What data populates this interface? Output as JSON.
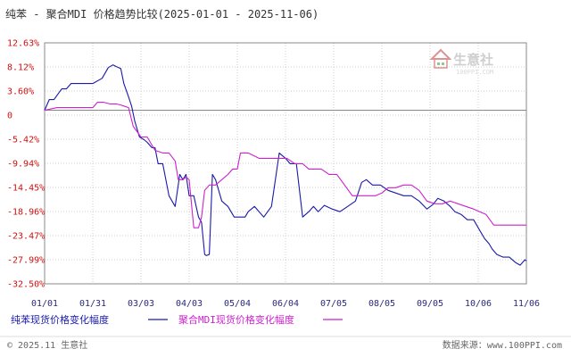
{
  "header": {
    "title": "纯苯 - 聚合MDI 价格趋势比较(2025-01-01 - 2025-11-06)"
  },
  "watermark": {
    "logo_text": "生意社",
    "logo_url": "100PPI.COM"
  },
  "footer": {
    "copyright": "© 2025.11 生意社",
    "site": "数据来源：www.100PPI.com"
  },
  "colors": {
    "series_1": "#1a1aa8",
    "series_2": "#cc22cc",
    "axis_label": "#d01010",
    "tick_label": "#2a2a7a",
    "grid": "#cfcfcf",
    "background": "#ffffff"
  },
  "chart_data": {
    "type": "line",
    "title": "纯苯 - 聚合MDI 价格趋势比较(2025-01-01 - 2025-11-06)",
    "x_ticks": [
      "01/01",
      "01/31",
      "03/03",
      "04/03",
      "05/04",
      "06/04",
      "07/05",
      "08/05",
      "09/05",
      "10/06",
      "11/06"
    ],
    "y_ticks": [
      "12.63%",
      "8.12%",
      "3.60%",
      "0",
      "-5.42%",
      "-9.94%",
      "-14.45%",
      "-18.96%",
      "-23.47%",
      "-27.99%",
      "-32.50%"
    ],
    "ylim": [
      -32.5,
      12.63
    ],
    "grid": true,
    "legend_position": "bottom",
    "series": [
      {
        "name": "纯苯现货价格变化幅度",
        "color": "#1a1aa8",
        "x": [
          0,
          3,
          6,
          11,
          14,
          17,
          21,
          26,
          31,
          37,
          41,
          44,
          46,
          49,
          51,
          54,
          56,
          58,
          61,
          64,
          66,
          69,
          71,
          73,
          76,
          80,
          84,
          87,
          89,
          91,
          93,
          96,
          99,
          101,
          103,
          104,
          106,
          108,
          110,
          114,
          118,
          122,
          126,
          129,
          131,
          135,
          138,
          141,
          146,
          151,
          155,
          158,
          162,
          166,
          170,
          173,
          176,
          180,
          185,
          190,
          195,
          200,
          204,
          207,
          211,
          216,
          221,
          226,
          231,
          236,
          241,
          246,
          250,
          253,
          257,
          261,
          264,
          268,
          272,
          276,
          279,
          283,
          286,
          288,
          291,
          295,
          299,
          303,
          306,
          309,
          310
        ],
        "values": [
          0,
          2,
          2,
          4,
          4,
          5,
          5,
          5,
          5,
          6,
          8,
          8.5,
          8.2,
          7.8,
          5,
          2.5,
          0.8,
          -2,
          -5,
          -5.5,
          -6,
          -7,
          -7,
          -10,
          -10,
          -16,
          -18,
          -12,
          -13,
          -12,
          -16,
          -16,
          -20,
          -21,
          -27,
          -27.2,
          -27,
          -12,
          -13,
          -17,
          -18,
          -20,
          -20,
          -20,
          -19,
          -18,
          -19,
          -20,
          -18,
          -8,
          -9,
          -10,
          -10,
          -20,
          -19,
          -18,
          -19,
          -17.8,
          -18.5,
          -19,
          -18,
          -17,
          -13.5,
          -13,
          -14,
          -14,
          -15,
          -15.5,
          -16,
          -16,
          -17,
          -18.5,
          -17.6,
          -16.5,
          -17,
          -18,
          -19,
          -19.5,
          -20.5,
          -20.5,
          -22,
          -24,
          -25,
          -26,
          -27,
          -27.5,
          -27.5,
          -28.5,
          -29,
          -28,
          -28.2
        ]
      },
      {
        "name": "聚合MDI现货价格变化幅度",
        "color": "#cc22cc",
        "x": [
          0,
          8,
          16,
          24,
          31,
          34,
          38,
          42,
          46,
          49,
          51,
          54,
          57,
          62,
          66,
          71,
          76,
          80,
          84,
          86,
          89,
          91,
          93,
          96,
          99,
          101,
          103,
          106,
          110,
          114,
          118,
          121,
          124,
          126,
          131,
          138,
          146,
          151,
          156,
          161,
          164,
          166,
          170,
          174,
          178,
          183,
          188,
          193,
          198,
          203,
          208,
          213,
          217,
          221,
          226,
          231,
          236,
          241,
          246,
          251,
          256,
          261,
          266,
          271,
          276,
          280,
          284,
          289,
          296,
          302,
          310
        ],
        "values": [
          0,
          0.5,
          0.5,
          0.5,
          0.5,
          1.5,
          1.5,
          1.2,
          1.2,
          1,
          0.8,
          0.5,
          -3,
          -5,
          -5,
          -7.5,
          -8,
          -8,
          -9.5,
          -13,
          -13,
          -12.5,
          -13,
          -22,
          -22,
          -20,
          -15,
          -14,
          -14,
          -13,
          -12,
          -11,
          -11,
          -8,
          -8,
          -9,
          -9,
          -9,
          -9,
          -10,
          -10,
          -10,
          -11,
          -11,
          -11,
          -12,
          -12,
          -14,
          -16,
          -16,
          -16,
          -16,
          -15.5,
          -14.5,
          -14.5,
          -14,
          -14,
          -15,
          -17,
          -17.5,
          -17.5,
          -17,
          -17.5,
          -18,
          -18.5,
          -19,
          -19.5,
          -21.5,
          -21.5,
          -21.5,
          -21.5
        ]
      }
    ]
  }
}
